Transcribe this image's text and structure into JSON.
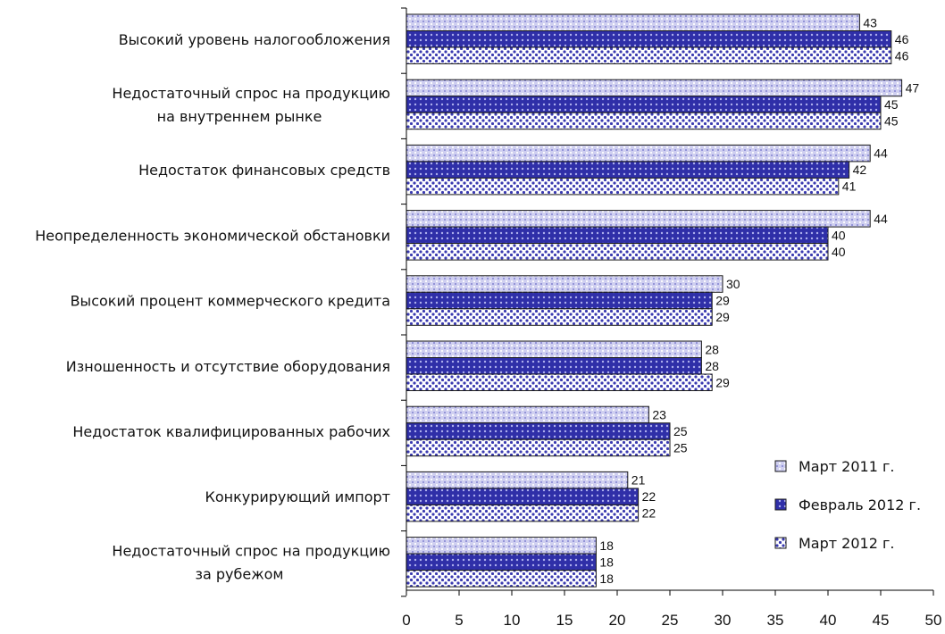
{
  "chart_data": {
    "type": "bar",
    "orientation": "horizontal",
    "categories": [
      [
        "Высокий уровень налогообложения"
      ],
      [
        "Недостаточный спрос на продукцию",
        "на внутреннем рынке"
      ],
      [
        "Недостаток финансовых средств"
      ],
      [
        "Неопределенность экономической обстановки"
      ],
      [
        "Высокий процент коммерческого кредита"
      ],
      [
        "Изношенность и отсутствие оборудования"
      ],
      [
        "Недостаток квалифицированных рабочих"
      ],
      [
        "Конкурирующий импорт"
      ],
      [
        "Недостаточный спрос на продукцию",
        "за рубежом"
      ]
    ],
    "series": [
      {
        "name": "Март 2011 г.",
        "values": [
          43,
          47,
          44,
          44,
          30,
          28,
          23,
          21,
          18
        ],
        "color": "#a9a9e0",
        "pattern": "diamond-light"
      },
      {
        "name": "Февраль 2012 г.",
        "values": [
          46,
          45,
          42,
          40,
          29,
          28,
          25,
          22,
          18
        ],
        "color": "#3c3cb4",
        "pattern": "dots-dark"
      },
      {
        "name": "Март 2012 г.",
        "values": [
          46,
          45,
          41,
          40,
          29,
          29,
          25,
          22,
          18
        ],
        "color": "#8080cc",
        "pattern": "dots-light"
      }
    ],
    "xlim": [
      0,
      50
    ],
    "xticks": [
      0,
      5,
      10,
      15,
      20,
      25,
      30,
      35,
      40,
      45,
      50
    ],
    "grid": false,
    "legend_position": "right"
  }
}
